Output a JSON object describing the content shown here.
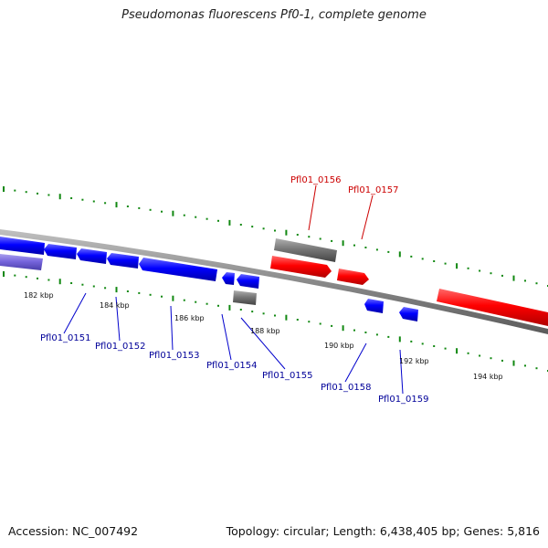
{
  "title": "Pseudomonas fluorescens Pf0-1, complete genome",
  "footer": {
    "accession": "Accession: NC_007492",
    "summary": "Topology: circular; Length: 6,438,405 bp; Genes: 5,816"
  },
  "colors": {
    "forward_gene": "#ff0000",
    "reverse_gene": "#0000ff",
    "other_feature": "#777777",
    "highlight_feature": "#7766dd",
    "backbone": "#8a8a8a",
    "ticks": "#118811",
    "forward_label": "#cc0000",
    "reverse_label": "#000099"
  },
  "scale_labels": [
    "182 kbp",
    "184 kbp",
    "186 kbp",
    "188 kbp",
    "190 kbp",
    "192 kbp",
    "194 kbp"
  ],
  "genes": [
    {
      "label": "Pfl01_0151",
      "strand": "reverse"
    },
    {
      "label": "Pfl01_0152",
      "strand": "reverse"
    },
    {
      "label": "Pfl01_0153",
      "strand": "reverse"
    },
    {
      "label": "Pfl01_0154",
      "strand": "reverse"
    },
    {
      "label": "Pfl01_0155",
      "strand": "reverse"
    },
    {
      "label": "Pfl01_0156",
      "strand": "forward"
    },
    {
      "label": "Pfl01_0157",
      "strand": "forward"
    },
    {
      "label": "Pfl01_0158",
      "strand": "reverse"
    },
    {
      "label": "Pfl01_0159",
      "strand": "reverse"
    }
  ]
}
